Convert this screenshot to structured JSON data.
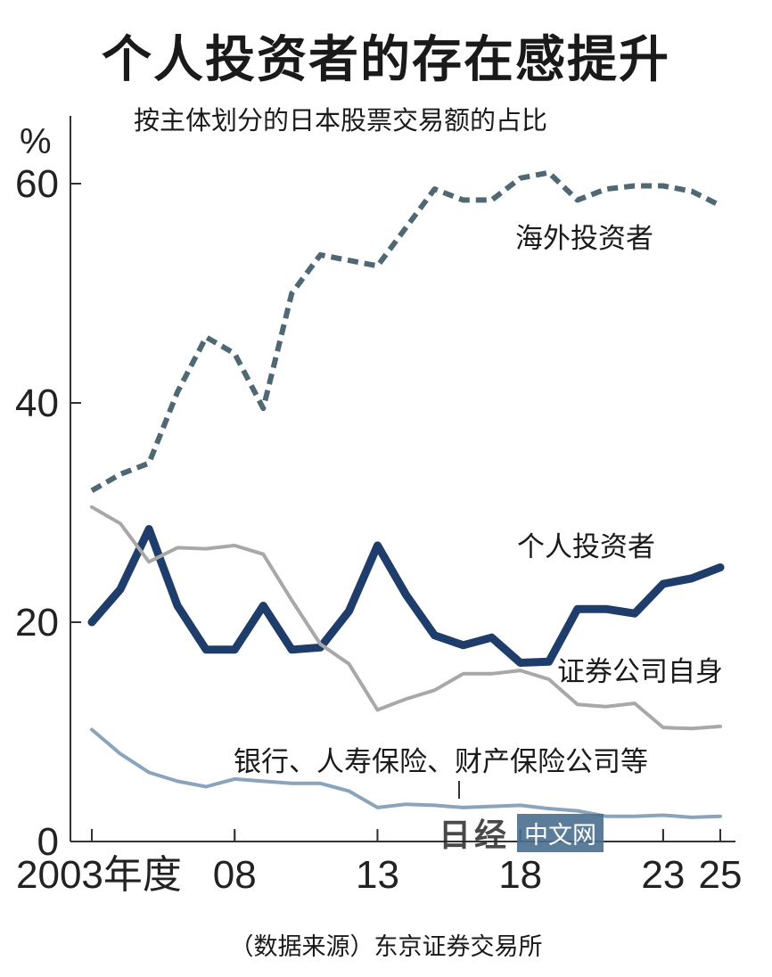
{
  "header": {
    "title": "个人投资者的存在感提升",
    "subtitle": "按主体划分的日本股票交易额的占比"
  },
  "footer": {
    "source": "（数据来源）东京证券交易所"
  },
  "watermark": {
    "logo_text": "日经",
    "tag": "中文网"
  },
  "chart_data": {
    "type": "line",
    "title": "个人投资者的存在感提升",
    "subtitle": "按主体划分的日本股票交易额的占比",
    "ylabel": "%",
    "xlabel": "",
    "ylim": [
      0,
      65
    ],
    "xlim": [
      2003,
      2025
    ],
    "y_ticks": [
      0,
      20,
      40,
      60
    ],
    "x_ticks": [
      {
        "value": 2003,
        "label": "2003年度"
      },
      {
        "value": 2008,
        "label": "08"
      },
      {
        "value": 2013,
        "label": "13"
      },
      {
        "value": 2018,
        "label": "18"
      },
      {
        "value": 2023,
        "label": "23"
      },
      {
        "value": 2025,
        "label": "25"
      }
    ],
    "grid": false,
    "x": [
      2003,
      2004,
      2005,
      2006,
      2007,
      2008,
      2009,
      2010,
      2011,
      2012,
      2013,
      2014,
      2015,
      2016,
      2017,
      2018,
      2019,
      2020,
      2021,
      2022,
      2023,
      2024,
      2025
    ],
    "series": [
      {
        "name": "海外投资者",
        "style": "dashed",
        "color": "#4f6873",
        "values": [
          32,
          33.5,
          34.5,
          41,
          46,
          44.5,
          39.5,
          50,
          53.5,
          53,
          52.5,
          56,
          59.5,
          58.5,
          58.5,
          60.5,
          61,
          58.5,
          59.5,
          59.8,
          59.8,
          59.3,
          58
        ]
      },
      {
        "name": "个人投资者",
        "style": "solid-thick",
        "color": "#1f3d6b",
        "values": [
          20,
          23,
          28.5,
          21.5,
          17.5,
          17.5,
          21.5,
          17.5,
          17.7,
          21,
          27,
          22.5,
          18.8,
          17.9,
          18.6,
          16.3,
          16.4,
          21.2,
          21.2,
          20.8,
          23.5,
          24,
          25
        ]
      },
      {
        "name": "证券公司自身",
        "style": "solid",
        "color": "#a8a8a8",
        "values": [
          30.5,
          29,
          25.5,
          26.8,
          26.7,
          27,
          26.2,
          22,
          18,
          16.2,
          12,
          13,
          13.8,
          15.3,
          15.3,
          15.6,
          14.8,
          12.5,
          12.3,
          12.6,
          10.4,
          10.3,
          10.5
        ]
      },
      {
        "name": "银行、人寿保险、财产保险公司等",
        "style": "solid",
        "color": "#8aa4bc",
        "values": [
          10.2,
          8,
          6.3,
          5.5,
          5,
          5.7,
          5.5,
          5.3,
          5.3,
          4.6,
          3.1,
          3.4,
          3.3,
          3.1,
          3.2,
          3.3,
          3,
          2.8,
          2.3,
          2.3,
          2.4,
          2.2,
          2.3
        ]
      }
    ]
  }
}
